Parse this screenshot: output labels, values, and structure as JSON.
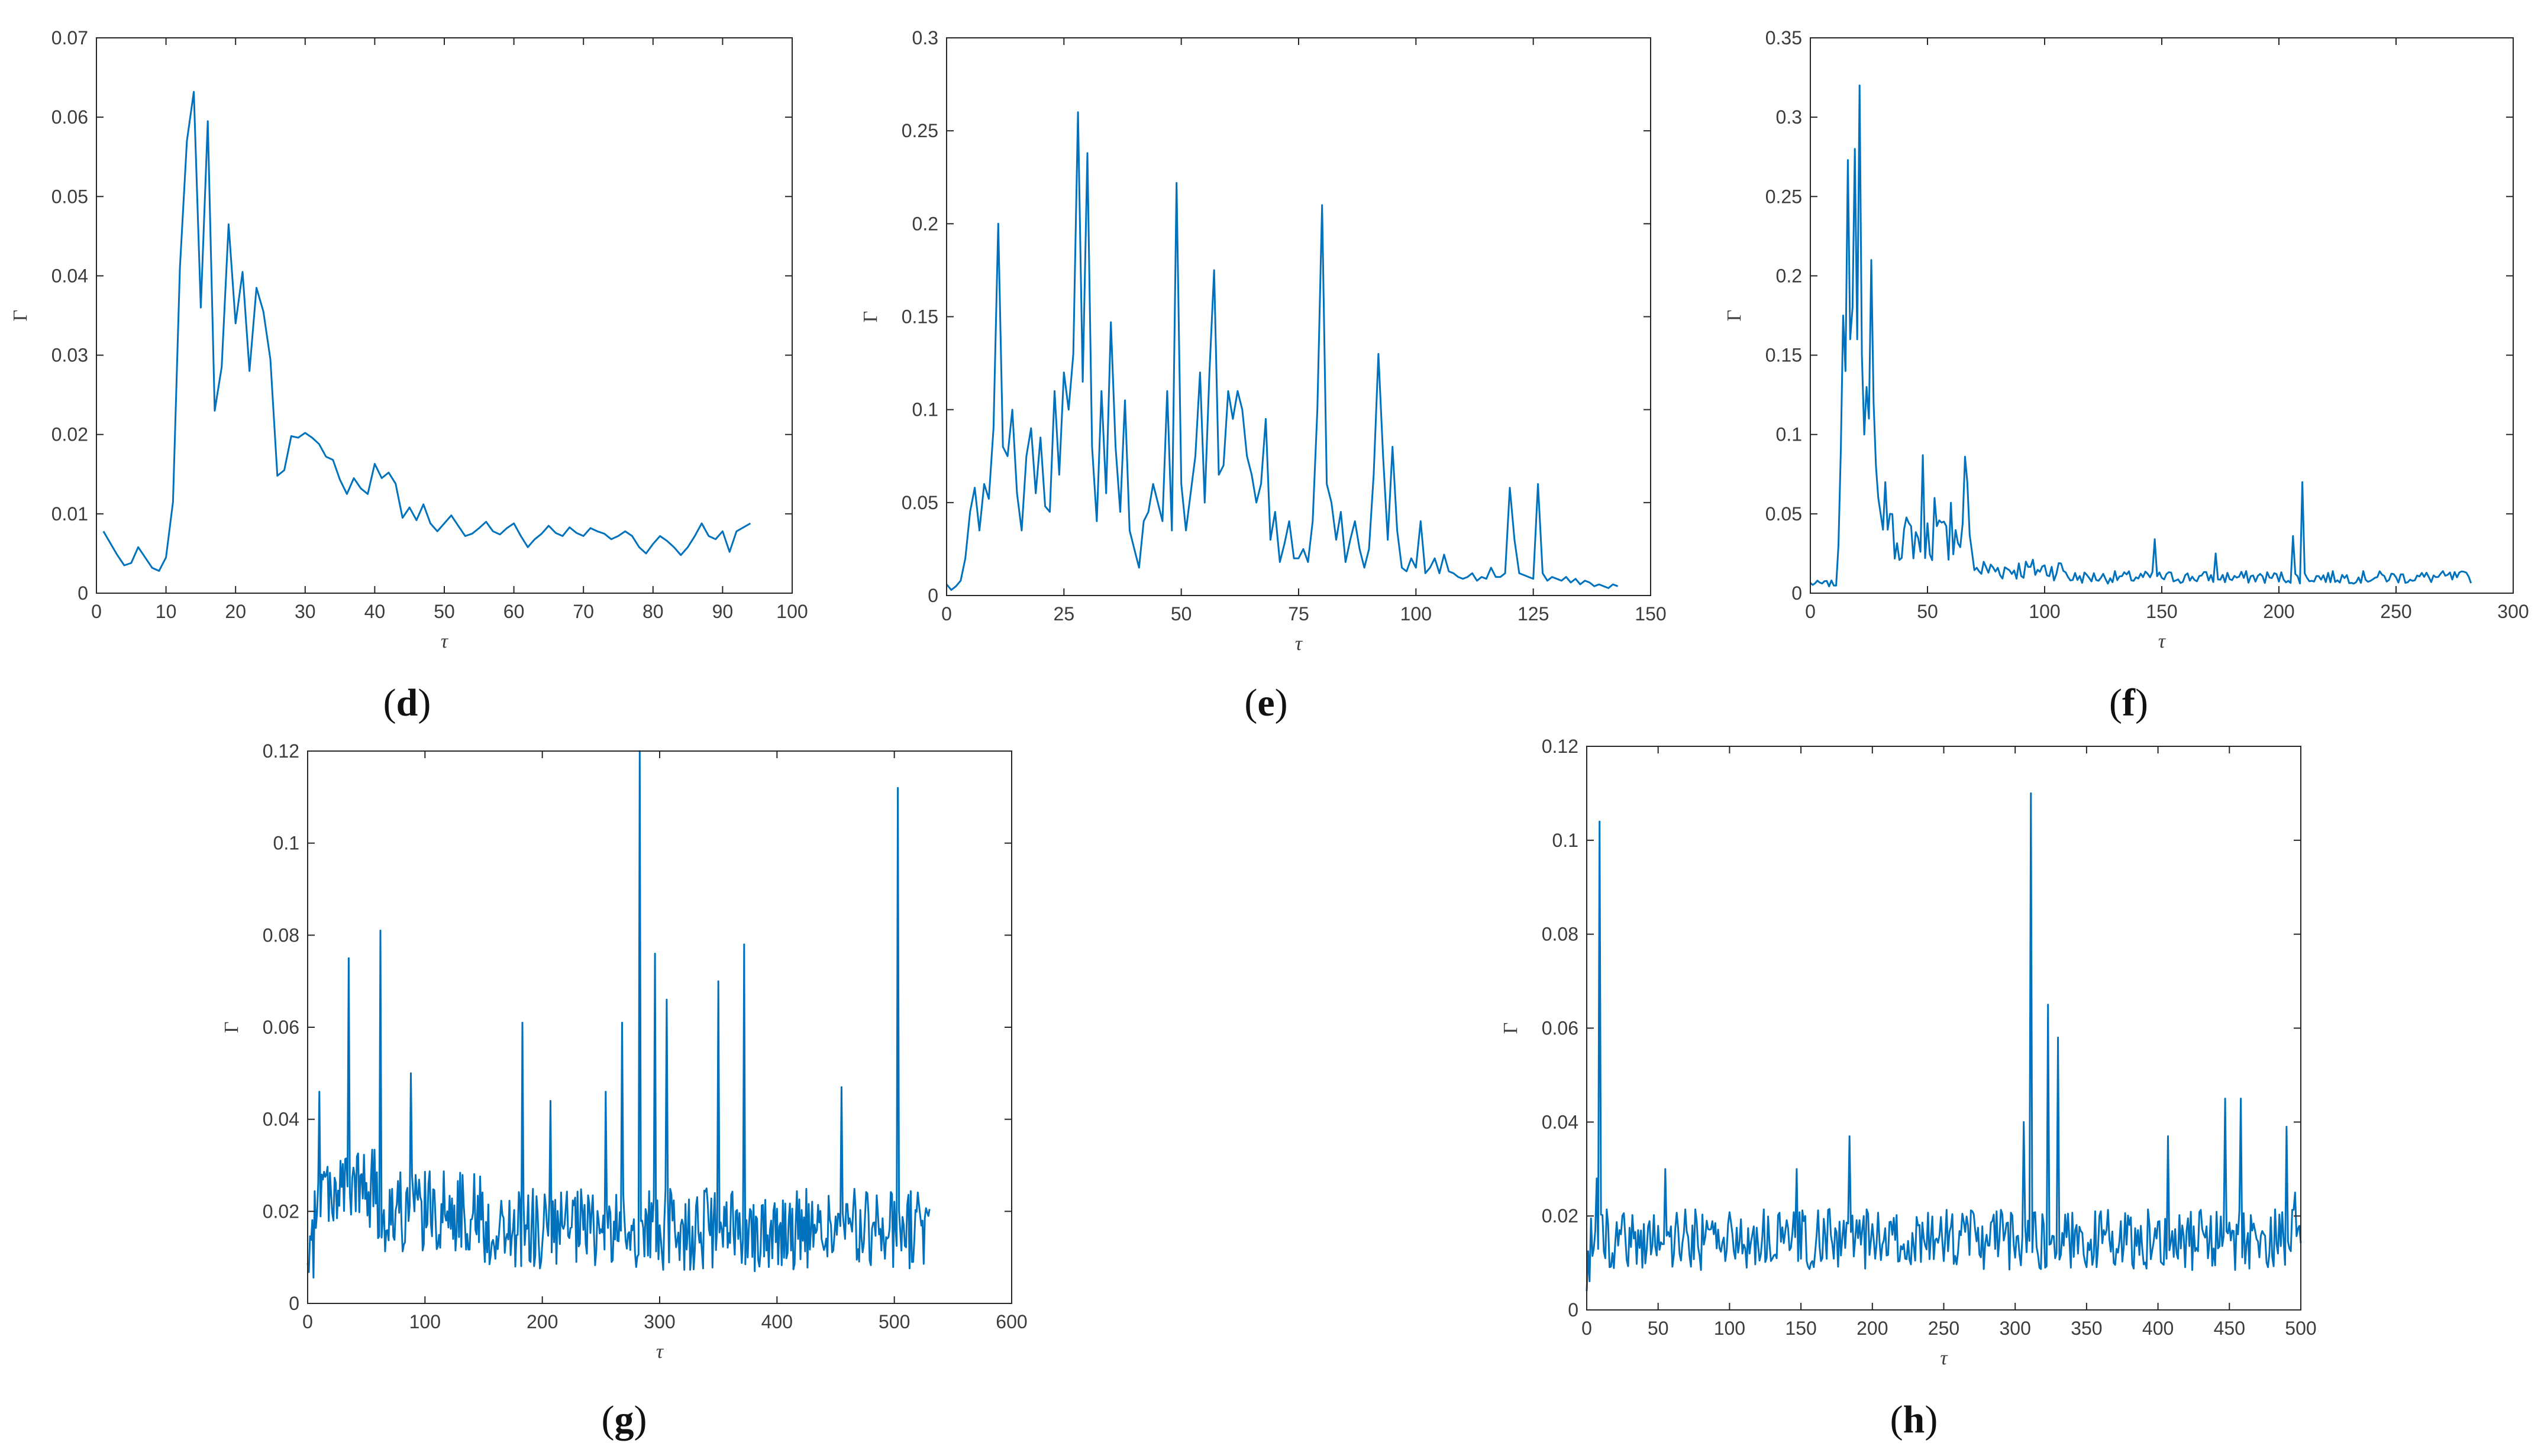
{
  "colors": {
    "line": "#0072BD",
    "axis": "#262626",
    "text": "#3c3c3c"
  },
  "chart_data": [
    {
      "id": "d",
      "type": "line",
      "panel_label": "d",
      "xlabel": "τ",
      "ylabel": "Γ",
      "xlim": [
        0,
        100
      ],
      "ylim": [
        0,
        0.07
      ],
      "xticks": [
        0,
        10,
        20,
        30,
        40,
        50,
        60,
        70,
        80,
        90,
        100
      ],
      "xtick_labels": [
        "0",
        "10",
        "20",
        "30",
        "40",
        "50",
        "60",
        "70",
        "80",
        "90",
        "100"
      ],
      "yticks": [
        0,
        0.01,
        0.02,
        0.03,
        0.04,
        0.05,
        0.06,
        0.07
      ],
      "ytick_labels": [
        "0",
        "0.01",
        "0.02",
        "0.03",
        "0.04",
        "0.05",
        "0.06",
        "0.07"
      ],
      "series": [
        {
          "name": "Γ(τ)",
          "x_start": 1,
          "x_step": 1,
          "values": [
            0.0078,
            0.0063,
            0.0048,
            0.0035,
            0.0038,
            0.0058,
            0.0045,
            0.0032,
            0.0028,
            0.0045,
            0.0115,
            0.041,
            0.057,
            0.0632,
            0.036,
            0.0595,
            0.023,
            0.0285,
            0.0465,
            0.034,
            0.0405,
            0.028,
            0.0385,
            0.0355,
            0.0295,
            0.0148,
            0.0155,
            0.0198,
            0.0196,
            0.0202,
            0.0196,
            0.0188,
            0.0172,
            0.0168,
            0.0143,
            0.0125,
            0.0145,
            0.0132,
            0.0125,
            0.0163,
            0.0145,
            0.0152,
            0.0138,
            0.0095,
            0.0108,
            0.0092,
            0.0112,
            0.0088,
            0.0078,
            0.0088,
            0.0098,
            0.0085,
            0.0072,
            0.0075,
            0.0082,
            0.009,
            0.0078,
            0.0074,
            0.0082,
            0.0088,
            0.0072,
            0.0058,
            0.0068,
            0.0075,
            0.0085,
            0.0076,
            0.0072,
            0.0083,
            0.0076,
            0.0072,
            0.0082,
            0.0078,
            0.0075,
            0.0068,
            0.0072,
            0.0078,
            0.0072,
            0.0058,
            0.005,
            0.0062,
            0.0072,
            0.0066,
            0.0058,
            0.0048,
            0.0058,
            0.0072,
            0.0088,
            0.0072,
            0.0068,
            0.0078,
            0.0052,
            0.0078,
            0.0083,
            0.0088
          ]
        }
      ]
    },
    {
      "id": "e",
      "type": "line",
      "panel_label": "e",
      "xlabel": "τ",
      "ylabel": "Γ",
      "xlim": [
        0,
        150
      ],
      "ylim": [
        0,
        0.3
      ],
      "xticks": [
        0,
        25,
        50,
        75,
        100,
        125,
        150
      ],
      "xtick_labels": [
        "0",
        "25",
        "50",
        "75",
        "100",
        "125",
        "150"
      ],
      "yticks": [
        0,
        0.05,
        0.1,
        0.15,
        0.2,
        0.25,
        0.3
      ],
      "ytick_labels": [
        "0",
        "0.05",
        "0.1",
        "0.15",
        "0.2",
        "0.25",
        "0.3"
      ],
      "series": [
        {
          "name": "Γ(τ)",
          "x_start": 0,
          "x_step": 1,
          "values": [
            0.006,
            0.003,
            0.005,
            0.008,
            0.02,
            0.045,
            0.058,
            0.035,
            0.06,
            0.052,
            0.09,
            0.2,
            0.08,
            0.075,
            0.1,
            0.055,
            0.035,
            0.075,
            0.09,
            0.055,
            0.085,
            0.048,
            0.045,
            0.11,
            0.065,
            0.12,
            0.1,
            0.13,
            0.26,
            0.115,
            0.238,
            0.08,
            0.04,
            0.11,
            0.055,
            0.147,
            0.08,
            0.045,
            0.105,
            0.035,
            0.025,
            0.015,
            0.04,
            0.045,
            0.06,
            0.05,
            0.04,
            0.11,
            0.035,
            0.222,
            0.06,
            0.035,
            0.055,
            0.075,
            0.12,
            0.05,
            0.12,
            0.175,
            0.065,
            0.07,
            0.11,
            0.095,
            0.11,
            0.1,
            0.075,
            0.065,
            0.05,
            0.06,
            0.095,
            0.03,
            0.045,
            0.018,
            0.028,
            0.04,
            0.02,
            0.02,
            0.025,
            0.018,
            0.04,
            0.1,
            0.21,
            0.06,
            0.05,
            0.03,
            0.045,
            0.018,
            0.03,
            0.04,
            0.025,
            0.015,
            0.025,
            0.065,
            0.13,
            0.075,
            0.03,
            0.08,
            0.035,
            0.015,
            0.013,
            0.02,
            0.015,
            0.04,
            0.012,
            0.015,
            0.02,
            0.012,
            0.022,
            0.013,
            0.012,
            0.01,
            0.009,
            0.01,
            0.012,
            0.008,
            0.01,
            0.009,
            0.015,
            0.01,
            0.01,
            0.012,
            0.058,
            0.03,
            0.012,
            0.011,
            0.01,
            0.009,
            0.06,
            0.012,
            0.008,
            0.01,
            0.009,
            0.008,
            0.01,
            0.007,
            0.009,
            0.006,
            0.008,
            0.007,
            0.005,
            0.006,
            0.005,
            0.004,
            0.006,
            0.005
          ]
        }
      ]
    },
    {
      "id": "f",
      "type": "line",
      "panel_label": "f",
      "xlabel": "τ",
      "ylabel": "Γ",
      "xlim": [
        0,
        300
      ],
      "ylim": [
        0,
        0.35
      ],
      "xticks": [
        0,
        50,
        100,
        150,
        200,
        250,
        300
      ],
      "xtick_labels": [
        "0",
        "50",
        "100",
        "150",
        "200",
        "250",
        "300"
      ],
      "yticks": [
        0,
        0.05,
        0.1,
        0.15,
        0.2,
        0.25,
        0.3,
        0.35
      ],
      "ytick_labels": [
        "0",
        "0.05",
        "0.1",
        "0.15",
        "0.2",
        "0.25",
        "0.3",
        "0.35"
      ],
      "series": [
        {
          "name": "Γ(τ)",
          "x_start": 0,
          "x_step": 1,
          "values": []
        }
      ]
    },
    {
      "id": "g",
      "type": "line",
      "panel_label": "g",
      "xlabel": "τ",
      "ylabel": "Γ",
      "xlim": [
        0,
        600
      ],
      "ylim": [
        0,
        0.12
      ],
      "xticks": [
        0,
        100,
        200,
        300,
        400,
        500,
        600
      ],
      "xtick_labels": [
        "0",
        "100",
        "200",
        "300",
        "400",
        "500",
        "600"
      ],
      "yticks": [
        0,
        0.02,
        0.04,
        0.06,
        0.08,
        0.1,
        0.12
      ],
      "ytick_labels": [
        "0",
        "0.02",
        "0.04",
        "0.06",
        "0.08",
        "0.1",
        "0.12"
      ],
      "series": [
        {
          "name": "Γ(τ)",
          "x_start": 0,
          "x_step": 1,
          "values": []
        }
      ]
    },
    {
      "id": "h",
      "type": "line",
      "panel_label": "h",
      "xlabel": "τ",
      "ylabel": "Γ",
      "xlim": [
        0,
        500
      ],
      "ylim": [
        0,
        0.12
      ],
      "xticks": [
        0,
        50,
        100,
        150,
        200,
        250,
        300,
        350,
        400,
        450,
        500
      ],
      "xtick_labels": [
        "0",
        "50",
        "100",
        "150",
        "200",
        "250",
        "300",
        "350",
        "400",
        "450",
        "500"
      ],
      "yticks": [
        0,
        0.02,
        0.04,
        0.06,
        0.08,
        0.1,
        0.12
      ],
      "ytick_labels": [
        "0",
        "0.02",
        "0.04",
        "0.06",
        "0.08",
        "0.1",
        "0.12"
      ],
      "series": [
        {
          "name": "Γ(τ)",
          "x_start": 0,
          "x_step": 1,
          "values": []
        }
      ]
    }
  ]
}
